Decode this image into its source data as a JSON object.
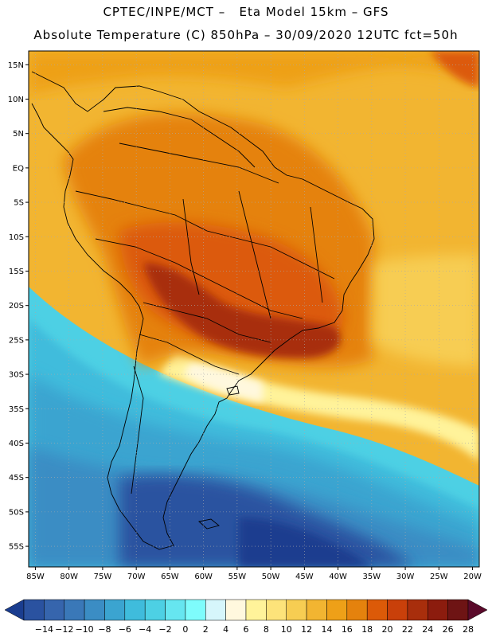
{
  "header": {
    "line1": "CPTEC/INPE/MCT –   Eta Model 15km – GFS",
    "line2": "Absolute Temperature (C) 850hPa – 30/09/2020 12UTC fct=50h"
  },
  "axes": {
    "lat_labels": [
      "15N",
      "10N",
      "5N",
      "EQ",
      "5S",
      "10S",
      "15S",
      "20S",
      "25S",
      "30S",
      "35S",
      "40S",
      "45S",
      "50S",
      "55S"
    ],
    "lat_values": [
      15,
      10,
      5,
      0,
      -5,
      -10,
      -15,
      -20,
      -25,
      -30,
      -35,
      -40,
      -45,
      -50,
      -55
    ],
    "lon_labels": [
      "85W",
      "80W",
      "75W",
      "70W",
      "65W",
      "60W",
      "55W",
      "50W",
      "45W",
      "40W",
      "35W",
      "30W",
      "25W",
      "20W"
    ],
    "lon_values": [
      -85,
      -80,
      -75,
      -70,
      -65,
      -60,
      -55,
      -50,
      -45,
      -40,
      -35,
      -30,
      -25,
      -20
    ],
    "lon_range": [
      -86,
      -19
    ],
    "lat_range": [
      -58,
      17
    ],
    "grid": "dotted"
  },
  "colorbar": {
    "tick_labels": [
      "-14",
      "-12",
      "-10",
      "-8",
      "-6",
      "-4",
      "-2",
      "0",
      "2",
      "4",
      "6",
      "8",
      "10",
      "12",
      "14",
      "16",
      "18",
      "20",
      "22",
      "24",
      "26",
      "28"
    ],
    "colors": [
      "#1a3d8f",
      "#2a52a0",
      "#3665ad",
      "#3a78b8",
      "#3b8dc4",
      "#3ba4d0",
      "#3fbcdc",
      "#4dd0e4",
      "#66e6f0",
      "#7efcfc",
      "#d6f6fb",
      "#fff8de",
      "#fff39a",
      "#fde37a",
      "#f7cd52",
      "#f2b531",
      "#eea018",
      "#e5820d",
      "#dc5a08",
      "#c9400a",
      "#a82e0c",
      "#8c1c0e",
      "#6e1414",
      "#5a0a2a"
    ]
  }
}
